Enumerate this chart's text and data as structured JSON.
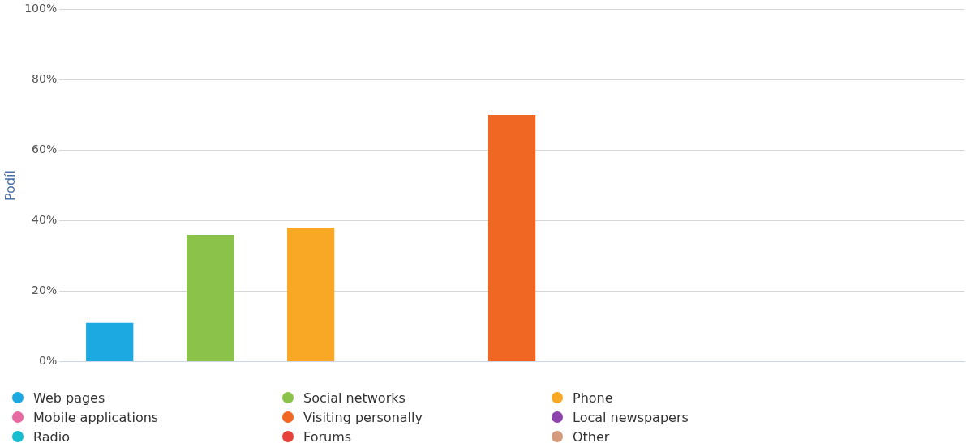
{
  "chart_data": {
    "type": "bar",
    "categories": [
      null,
      null,
      null,
      null,
      null,
      null,
      null,
      null,
      null
    ],
    "series": [
      {
        "name": "Web pages",
        "color": "#1ca9e1",
        "values": [
          11,
          null,
          null,
          null,
          null,
          null,
          null,
          null,
          null
        ]
      },
      {
        "name": "Social networks",
        "color": "#8bc34a",
        "values": [
          null,
          36,
          null,
          null,
          null,
          null,
          null,
          null,
          null
        ]
      },
      {
        "name": "Phone",
        "color": "#f9a825",
        "values": [
          null,
          null,
          38,
          null,
          null,
          null,
          null,
          null,
          null
        ]
      },
      {
        "name": "Mobile applications",
        "color": "#e868a2",
        "values": [
          null,
          null,
          null,
          0,
          null,
          null,
          null,
          null,
          null
        ]
      },
      {
        "name": "Visiting personally",
        "color": "#f06724",
        "values": [
          null,
          null,
          null,
          null,
          70,
          null,
          null,
          null,
          null
        ]
      },
      {
        "name": "Local newspapers",
        "color": "#8e44ad",
        "values": [
          null,
          null,
          null,
          null,
          null,
          0,
          null,
          null,
          null
        ]
      },
      {
        "name": "Radio",
        "color": "#17becf",
        "values": [
          null,
          null,
          null,
          null,
          null,
          null,
          0,
          null,
          null
        ]
      },
      {
        "name": "Forums",
        "color": "#e8403a",
        "values": [
          null,
          null,
          null,
          null,
          null,
          null,
          null,
          0,
          null
        ]
      },
      {
        "name": "Other",
        "color": "#d49a7a",
        "values": [
          null,
          null,
          null,
          null,
          null,
          null,
          null,
          null,
          0
        ]
      }
    ],
    "ylabel": "Podíl",
    "ylim": [
      0,
      100
    ],
    "yticks": [
      {
        "value": 0,
        "label": "0%"
      },
      {
        "value": 20,
        "label": "20%"
      },
      {
        "value": 40,
        "label": "40%"
      },
      {
        "value": 60,
        "label": "60%"
      },
      {
        "value": 80,
        "label": "80%"
      },
      {
        "value": 100,
        "label": "100%"
      }
    ],
    "grid": "y",
    "legend": "bottom"
  }
}
